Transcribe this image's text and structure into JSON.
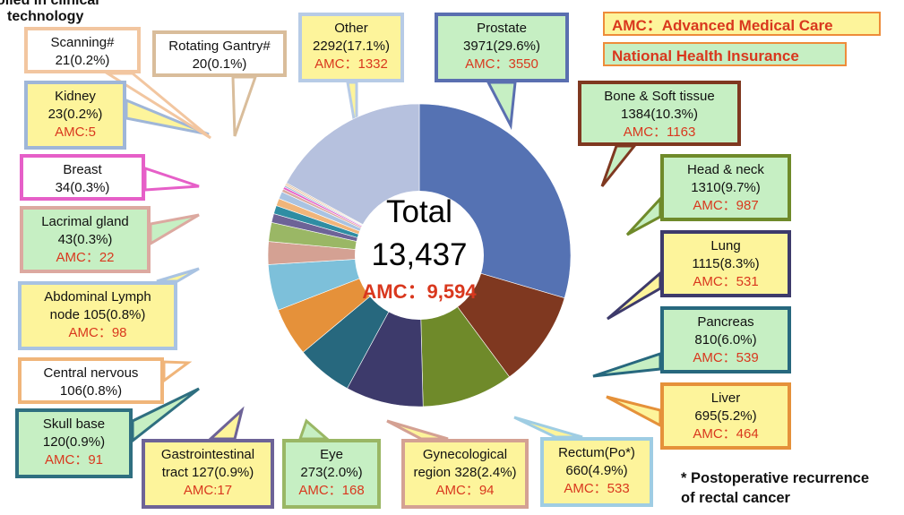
{
  "header_cut_text": [
    "olled in clinical",
    "technology"
  ],
  "legend": {
    "amc": "AMC：Advanced Medical Care",
    "nhi": "National Health Insurance"
  },
  "center": {
    "total_label": "Total",
    "total_value": "13,437",
    "amc_label": "AMC：9,594"
  },
  "footnote": [
    "* Postoperative recurrence",
    "of rectal cancer"
  ],
  "colors": {
    "amc_bg": "#fdf49b",
    "nhi_bg": "#c6efc3",
    "amc_text": "#d9381e"
  },
  "chart_data": {
    "type": "pie",
    "style": "donut",
    "total": 13437,
    "total_amc": 9594,
    "slices": [
      {
        "name": "Prostate",
        "value": 3971,
        "pct": "29.6%",
        "amc": 3550,
        "color": "#5572b3"
      },
      {
        "name": "Bone & Soft tissue",
        "value": 1384,
        "pct": "10.3%",
        "amc": 1163,
        "color": "#7f3820"
      },
      {
        "name": "Head & neck",
        "value": 1310,
        "pct": "9.7%",
        "amc": 987,
        "color": "#6f8a2a"
      },
      {
        "name": "Lung",
        "value": 1115,
        "pct": "8.3%",
        "amc": 531,
        "color": "#3d3a6b"
      },
      {
        "name": "Pancreas",
        "value": 810,
        "pct": "6.0%",
        "amc": 539,
        "color": "#27687e"
      },
      {
        "name": "Liver",
        "value": 695,
        "pct": "5.2%",
        "amc": 464,
        "color": "#e5913a"
      },
      {
        "name": "Rectum(Po*)",
        "value": 660,
        "pct": "4.9%",
        "amc": 533,
        "color": "#7dc0da"
      },
      {
        "name": "Gynecological region",
        "value": 328,
        "pct": "2.4%",
        "amc": 94,
        "color": "#d4a193"
      },
      {
        "name": "Eye",
        "value": 273,
        "pct": "2.0%",
        "amc": 168,
        "color": "#9ab765"
      },
      {
        "name": "Gastrointestinal tract",
        "value": 127,
        "pct": "0.9%",
        "amc": 17,
        "color": "#6d6397"
      },
      {
        "name": "Skull base",
        "value": 120,
        "pct": "0.9%",
        "amc": 91,
        "color": "#2f8da3"
      },
      {
        "name": "Central nervous",
        "value": 106,
        "pct": "0.8%",
        "amc": null,
        "color": "#f0b57a"
      },
      {
        "name": "Abdominal Lymph node",
        "value": 105,
        "pct": "0.8%",
        "amc": 98,
        "color": "#a9c3e2"
      },
      {
        "name": "Lacrimal gland",
        "value": 43,
        "pct": "0.3%",
        "amc": 22,
        "color": "#dca9a0"
      },
      {
        "name": "Breast",
        "value": 34,
        "pct": "0.3%",
        "amc": null,
        "color": "#e65fc8"
      },
      {
        "name": "Kidney",
        "value": 23,
        "pct": "0.2%",
        "amc": 5,
        "color": "#9fb6d8"
      },
      {
        "name": "Scanning#",
        "value": 21,
        "pct": "0.2%",
        "amc": null,
        "color": "#f2c6a0"
      },
      {
        "name": "Rotating Gantry#",
        "value": 20,
        "pct": "0.1%",
        "amc": null,
        "color": "#d9bd9b"
      },
      {
        "name": "Other",
        "value": 2292,
        "pct": "17.1%",
        "amc": 1332,
        "color": "#b6c1de"
      }
    ]
  },
  "callouts": [
    {
      "key": "other",
      "lines": [
        "Other",
        "2292(17.1%)",
        "AMC：1332"
      ]
    },
    {
      "key": "prostate",
      "lines": [
        "Prostate",
        "3971(29.6%)",
        "AMC：3550"
      ]
    },
    {
      "key": "bone",
      "lines": [
        "Bone & Soft tissue",
        "1384(10.3%)",
        "AMC：1163"
      ]
    },
    {
      "key": "headneck",
      "lines": [
        "Head & neck",
        "1310(9.7%)",
        "AMC：987"
      ]
    },
    {
      "key": "lung",
      "lines": [
        "Lung",
        "1115(8.3%)",
        "AMC：531"
      ]
    },
    {
      "key": "pancreas",
      "lines": [
        "Pancreas",
        "810(6.0%)",
        "AMC：539"
      ]
    },
    {
      "key": "liver",
      "lines": [
        "Liver",
        "695(5.2%)",
        "AMC：464"
      ]
    },
    {
      "key": "rectum",
      "lines": [
        "Rectum(Po*)",
        "660(4.9%)",
        "AMC：533"
      ]
    },
    {
      "key": "gyn",
      "lines": [
        "Gynecological",
        "region 328(2.4%)",
        "AMC：94"
      ]
    },
    {
      "key": "eye",
      "lines": [
        "Eye",
        "273(2.0%)",
        "AMC：168"
      ]
    },
    {
      "key": "gi",
      "lines": [
        "Gastrointestinal",
        "tract 127(0.9%)",
        "AMC:17"
      ]
    },
    {
      "key": "skull",
      "lines": [
        "Skull base",
        "120(0.9%)",
        "AMC：91"
      ]
    },
    {
      "key": "cns",
      "lines": [
        "Central nervous",
        "106(0.8%)"
      ]
    },
    {
      "key": "abd",
      "lines": [
        "Abdominal Lymph",
        "node 105(0.8%)",
        "AMC：98"
      ]
    },
    {
      "key": "lacrimal",
      "lines": [
        "Lacrimal gland",
        "43(0.3%)",
        "AMC：22"
      ]
    },
    {
      "key": "breast",
      "lines": [
        "Breast",
        "34(0.3%)"
      ]
    },
    {
      "key": "kidney",
      "lines": [
        "Kidney",
        "23(0.2%)",
        "AMC:5"
      ]
    },
    {
      "key": "scanning",
      "lines": [
        "Scanning#",
        "21(0.2%)"
      ]
    },
    {
      "key": "gantry",
      "lines": [
        "Rotating Gantry#",
        "20(0.1%)"
      ]
    }
  ]
}
